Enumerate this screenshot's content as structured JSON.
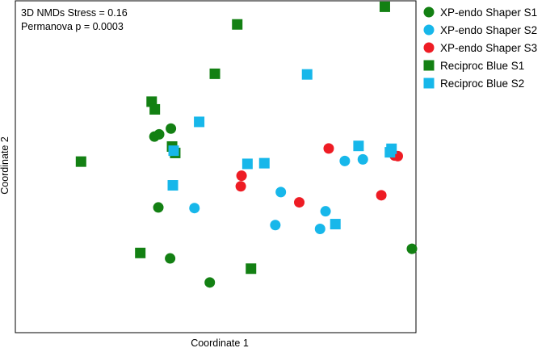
{
  "chart_data": {
    "type": "scatter",
    "title": "",
    "xlabel": "Coordinate 1",
    "ylabel": "Coordinate 2",
    "xlim": [
      0,
      100
    ],
    "ylim": [
      0,
      100
    ],
    "ticks": "none",
    "grid": false,
    "legend_position": "right",
    "annotations": [
      "3D NMDs Stress = 0.16",
      "Permanova p = 0.0003"
    ],
    "series": [
      {
        "name": "XP-endo Shaper S1",
        "color": "#138013",
        "marker": "circle",
        "points": [
          [
            34.4,
            59.4
          ],
          [
            35.6,
            60.1
          ],
          [
            38.6,
            61.9
          ],
          [
            35.4,
            37.3
          ],
          [
            38.4,
            21.4
          ],
          [
            48.5,
            13.9
          ],
          [
            100.0,
            24.4
          ]
        ]
      },
      {
        "name": "XP-endo Shaper S2",
        "color": "#17b7ea",
        "marker": "circle",
        "points": [
          [
            44.6,
            37.1
          ],
          [
            66.6,
            42.1
          ],
          [
            65.2,
            31.8
          ],
          [
            82.9,
            51.8
          ],
          [
            87.5,
            52.3
          ],
          [
            78.0,
            36.1
          ],
          [
            76.6,
            30.6
          ]
        ]
      },
      {
        "name": "XP-endo Shaper S3",
        "color": "#ee1c24",
        "marker": "circle",
        "points": [
          [
            56.6,
            47.2
          ],
          [
            56.4,
            43.9
          ],
          [
            78.8,
            55.7
          ],
          [
            71.3,
            38.9
          ],
          [
            92.2,
            41.1
          ],
          [
            95.6,
            53.5
          ],
          [
            96.4,
            53.3
          ]
        ]
      },
      {
        "name": "Reciproc Blue S1",
        "color": "#138013",
        "marker": "square",
        "points": [
          [
            93.1,
            99.9
          ],
          [
            55.5,
            94.4
          ],
          [
            49.8,
            79.0
          ],
          [
            33.7,
            70.3
          ],
          [
            34.5,
            67.9
          ],
          [
            38.9,
            56.3
          ],
          [
            39.7,
            54.3
          ],
          [
            15.7,
            51.6
          ],
          [
            30.8,
            23.1
          ],
          [
            59.0,
            18.2
          ]
        ]
      },
      {
        "name": "Reciproc Blue S2",
        "color": "#17b7ea",
        "marker": "square",
        "points": [
          [
            73.3,
            78.8
          ],
          [
            45.8,
            64.0
          ],
          [
            39.3,
            55.0
          ],
          [
            58.1,
            50.9
          ],
          [
            62.4,
            51.1
          ],
          [
            39.1,
            44.2
          ],
          [
            86.4,
            56.5
          ],
          [
            94.8,
            55.6
          ],
          [
            94.4,
            54.5
          ],
          [
            80.5,
            32.1
          ]
        ]
      }
    ]
  }
}
